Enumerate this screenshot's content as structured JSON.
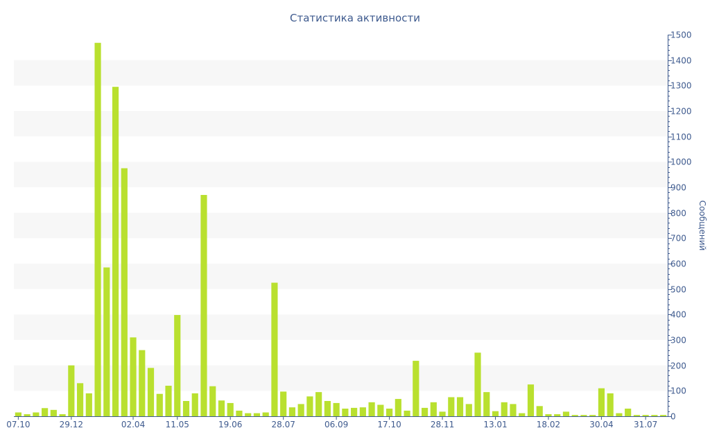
{
  "chart_data": {
    "type": "bar",
    "title": "Статистика активности",
    "xlabel": "",
    "ylabel": "Сообщений",
    "ylim": [
      0,
      1500
    ],
    "y_ticks": [
      0,
      100,
      200,
      300,
      400,
      500,
      600,
      700,
      800,
      900,
      1000,
      1100,
      1200,
      1300,
      1400,
      1500
    ],
    "y_axis_side": "right",
    "grid": "alternating horizontal bands",
    "bar_color": "#b9e02f",
    "band_color": "#f7f7f7",
    "axis_color": "#3e5a8e",
    "values": [
      15,
      8,
      15,
      32,
      25,
      8,
      200,
      130,
      90,
      1468,
      585,
      1295,
      975,
      310,
      260,
      190,
      88,
      120,
      398,
      60,
      90,
      870,
      118,
      62,
      52,
      22,
      12,
      12,
      15,
      525,
      97,
      35,
      48,
      78,
      95,
      60,
      52,
      30,
      33,
      35,
      55,
      45,
      30,
      68,
      22,
      218,
      33,
      55,
      18,
      75,
      75,
      48,
      250,
      95,
      20,
      55,
      48,
      12,
      125,
      40,
      8,
      8,
      18,
      5,
      5,
      5,
      110,
      90,
      12,
      30,
      5,
      5,
      5,
      5
    ],
    "x_tick_labels": [
      {
        "label": "07.10",
        "index": 0
      },
      {
        "label": "29.12",
        "index": 6
      },
      {
        "label": "02.04",
        "index": 13
      },
      {
        "label": "11.05",
        "index": 18
      },
      {
        "label": "19.06",
        "index": 24
      },
      {
        "label": "28.07",
        "index": 30
      },
      {
        "label": "06.09",
        "index": 36
      },
      {
        "label": "17.10",
        "index": 42
      },
      {
        "label": "28.11",
        "index": 48
      },
      {
        "label": "13.01",
        "index": 54
      },
      {
        "label": "18.02",
        "index": 60
      },
      {
        "label": "30.04",
        "index": 66
      },
      {
        "label": "31.07",
        "index": 71
      }
    ]
  }
}
